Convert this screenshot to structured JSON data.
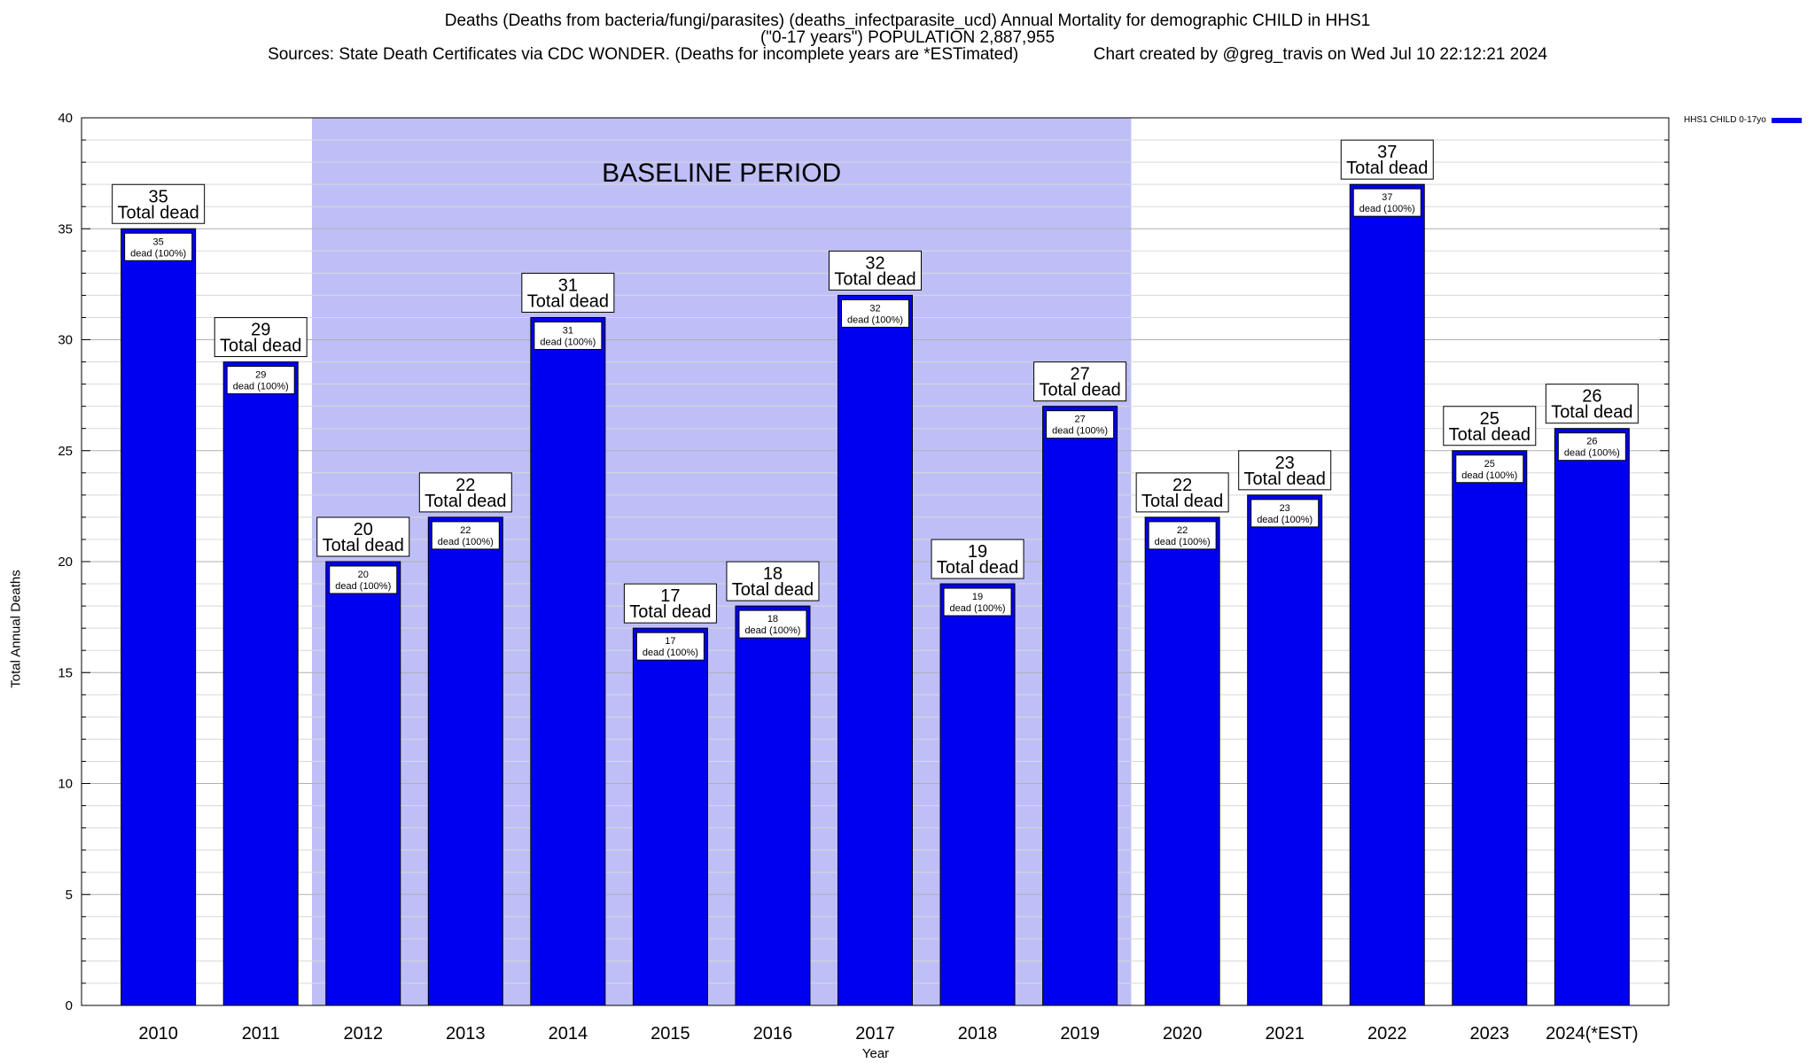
{
  "title_lines": [
    "Deaths (Deaths from bacteria/fungi/parasites) (deaths_infectparasite_ucd) Annual Mortality for demographic CHILD in HHS1",
    "(\"0-17 years\") POPULATION 2,887,955",
    "Sources: State Death Certificates via CDC WONDER. (Deaths for incomplete years are *ESTimated)                Chart created by @greg_travis on Wed Jul 10 22:12:21 2024"
  ],
  "colors": {
    "bar": "#0000f0",
    "baseline_shade": "#bfbff7",
    "grid": "#c8c8c8"
  },
  "chart_data": {
    "type": "bar",
    "categories": [
      "2010",
      "2011",
      "2012",
      "2013",
      "2014",
      "2015",
      "2016",
      "2017",
      "2018",
      "2019",
      "2020",
      "2021",
      "2022",
      "2023",
      "2024(*EST)"
    ],
    "series": [
      {
        "name": "HHS1 CHILD 0-17yo",
        "values": [
          35,
          29,
          20,
          22,
          31,
          17,
          18,
          32,
          19,
          27,
          22,
          23,
          37,
          25,
          26
        ]
      }
    ],
    "xlabel": "Year",
    "ylabel": "Total Annual Deaths",
    "ylim": [
      0,
      40
    ],
    "yticks": [
      0,
      5,
      10,
      15,
      20,
      25,
      30,
      35,
      40
    ],
    "grid": true,
    "legend_position": "top-right",
    "baseline_period": {
      "label": "BASELINE PERIOD",
      "from": "2012",
      "to": "2019"
    },
    "total_label_suffix": "Total dead",
    "inner_label_suffix": "dead (100%)"
  }
}
